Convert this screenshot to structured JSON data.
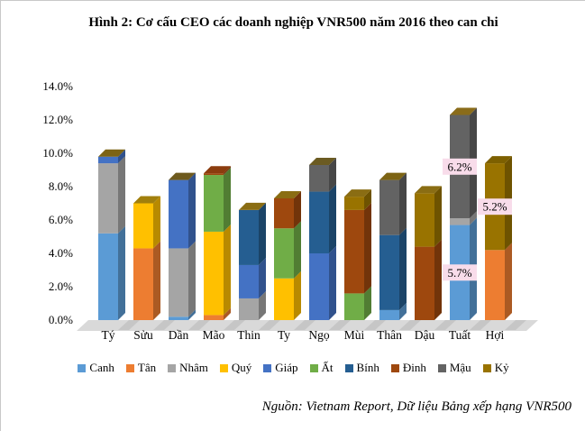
{
  "page": {
    "title": "Hình 2: Cơ cấu CEO các doanh nghiệp VNR500 năm 2016 theo can chi",
    "source": "Nguồn: Vietnam Report, Dữ liệu Bảng xếp hạng VNR500"
  },
  "colors": {
    "label_bg": "#F8DCEA",
    "floor": "#D9D9D9",
    "floor_shadow": "#C6C6C6",
    "text": "#000000"
  },
  "chart_data": {
    "type": "bar",
    "stacked": true,
    "three_d": true,
    "title": "Hình 2: Cơ cấu CEO các doanh nghiệp VNR500 năm 2016 theo can chi",
    "xlabel": "",
    "ylabel": "",
    "ylim": [
      0,
      14
    ],
    "y_ticks": [
      "0.0%",
      "2.0%",
      "4.0%",
      "6.0%",
      "8.0%",
      "10.0%",
      "12.0%",
      "14.0%"
    ],
    "gridlines": false,
    "legend_position": "bottom",
    "categories": [
      "Tý",
      "Sửu",
      "Dần",
      "Mão",
      "Thin",
      "Ty",
      "Ngọ",
      "Mùi",
      "Thân",
      "Dậu",
      "Tuất",
      "Hợi"
    ],
    "series": [
      {
        "name": "Canh",
        "color": "#5B9BD5"
      },
      {
        "name": "Tân",
        "color": "#ED7D31"
      },
      {
        "name": "Nhâm",
        "color": "#A5A5A5"
      },
      {
        "name": "Quý",
        "color": "#FFC000"
      },
      {
        "name": "Giáp",
        "color": "#4472C4"
      },
      {
        "name": "Ất",
        "color": "#70AD47"
      },
      {
        "name": "Bính",
        "color": "#255E91"
      },
      {
        "name": "Đinh",
        "color": "#9E480E"
      },
      {
        "name": "Mậu",
        "color": "#636363"
      },
      {
        "name": "Kỷ",
        "color": "#997300"
      }
    ],
    "bars": [
      {
        "category": "Tý",
        "cap_color": "#7D6414",
        "segments": [
          {
            "series": "Canh",
            "value": 5.2
          },
          {
            "series": "Nhâm",
            "value": 4.2
          },
          {
            "series": "Giáp",
            "value": 0.4
          }
        ]
      },
      {
        "category": "Sửu",
        "cap_color": "#A17F0C",
        "segments": [
          {
            "series": "Tân",
            "value": 4.3
          },
          {
            "series": "Quý",
            "value": 2.7
          }
        ]
      },
      {
        "category": "Dần",
        "cap_color": "#6E5A1E",
        "segments": [
          {
            "series": "Canh",
            "value": 0.2
          },
          {
            "series": "Nhâm",
            "value": 4.1
          },
          {
            "series": "Giáp",
            "value": 4.1
          }
        ]
      },
      {
        "category": "Mão",
        "cap_color": "#8B3C0E",
        "segments": [
          {
            "series": "Tân",
            "value": 0.3
          },
          {
            "series": "Quý",
            "value": 5.0
          },
          {
            "series": "Ất",
            "value": 3.4
          },
          {
            "series": "Đinh",
            "value": 0.1
          }
        ]
      },
      {
        "category": "Thin",
        "cap_color": "#8A6D13",
        "segments": [
          {
            "series": "Nhâm",
            "value": 1.3
          },
          {
            "series": "Giáp",
            "value": 2.0
          },
          {
            "series": "Bính",
            "value": 3.3
          }
        ]
      },
      {
        "category": "Ty",
        "cap_color": "#8A6D13",
        "segments": [
          {
            "series": "Quý",
            "value": 2.5
          },
          {
            "series": "Ất",
            "value": 3.0
          },
          {
            "series": "Đinh",
            "value": 1.8
          }
        ]
      },
      {
        "category": "Ngọ",
        "cap_color": "#6B5B22",
        "segments": [
          {
            "series": "Giáp",
            "value": 4.0
          },
          {
            "series": "Bính",
            "value": 3.7
          },
          {
            "series": "Mậu",
            "value": 1.6
          }
        ]
      },
      {
        "category": "Mùi",
        "cap_color": "#8A6D13",
        "segments": [
          {
            "series": "Ất",
            "value": 1.6
          },
          {
            "series": "Đinh",
            "value": 5.0
          },
          {
            "series": "Kỷ",
            "value": 0.8
          }
        ]
      },
      {
        "category": "Thân",
        "cap_color": "#7D6414",
        "segments": [
          {
            "series": "Canh",
            "value": 0.6
          },
          {
            "series": "Bính",
            "value": 4.5
          },
          {
            "series": "Mậu",
            "value": 3.3
          }
        ]
      },
      {
        "category": "Dậu",
        "cap_color": "#8A6D13",
        "segments": [
          {
            "series": "Đinh",
            "value": 4.4
          },
          {
            "series": "Kỷ",
            "value": 3.2
          }
        ]
      },
      {
        "category": "Tuất",
        "cap_color": "#8A6C1A",
        "segments": [
          {
            "series": "Canh",
            "value": 5.7
          },
          {
            "series": "Nhâm",
            "value": 0.4
          },
          {
            "series": "Mậu",
            "value": 6.2
          }
        ]
      },
      {
        "category": "Hợi",
        "cap_color": "#7D6000",
        "segments": [
          {
            "series": "Tân",
            "value": 4.2
          },
          {
            "series": "Kỷ",
            "value": 5.2
          }
        ]
      }
    ],
    "data_labels": [
      {
        "category": "Tuất",
        "series": "Mậu",
        "text": "6.2%"
      },
      {
        "category": "Hợi",
        "series": "Kỷ",
        "text": "5.2%"
      },
      {
        "category": "Tuất",
        "series": "Canh",
        "text": "5.7%"
      }
    ]
  }
}
